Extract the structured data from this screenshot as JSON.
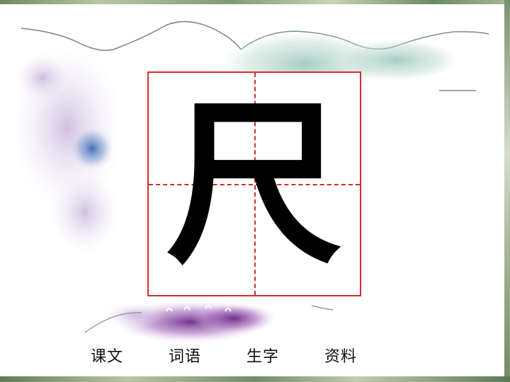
{
  "character": "尺",
  "nav": {
    "items": [
      {
        "label": "课文"
      },
      {
        "label": "词语"
      },
      {
        "label": "生字"
      },
      {
        "label": "资料"
      }
    ]
  },
  "colors": {
    "grid_border": "#d62c2c",
    "character": "#000000",
    "nav_text": "#111111"
  }
}
